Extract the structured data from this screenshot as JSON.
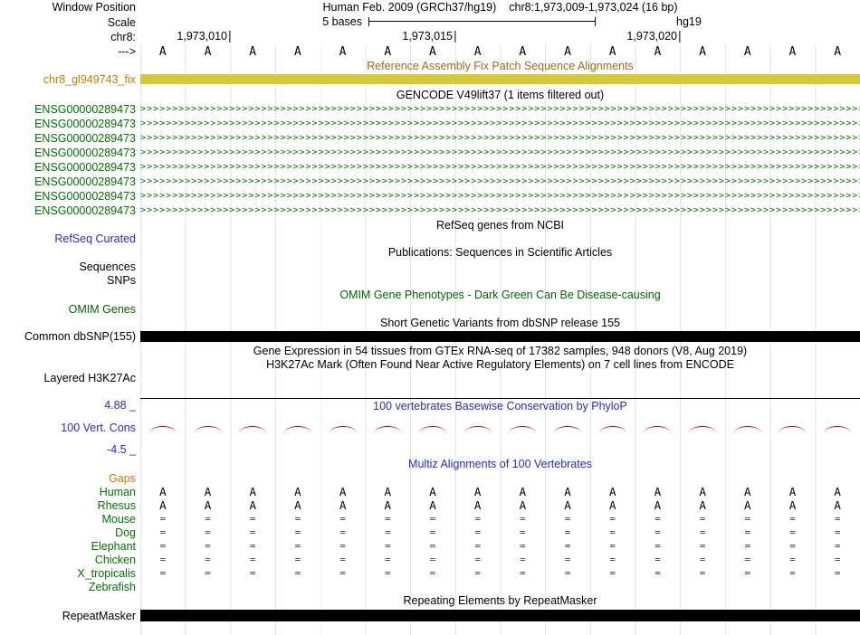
{
  "colors": {
    "grid": "#dde6f2",
    "green": "#007200",
    "blue": "#2929c8",
    "omim": "#006400",
    "orange": "#cc7a00",
    "gold": "#d6c837",
    "fixheader": "#a06a1e",
    "red": "#d40000",
    "black_bar": "#000000"
  },
  "header": {
    "window_position_label": "Window Position",
    "assembly_title": "Human Feb. 2009 (GRCh37/hg19)",
    "position": "chr8:1,973,009-1,973,024 (16 bp)",
    "scale_label": "Scale",
    "scale_value": "5 bases",
    "genome": "hg19",
    "chrom_label": "chr8:",
    "coord_ticks": [
      "1,973,010",
      "1,973,015",
      "1,973,020"
    ],
    "strand_arrow": "--->",
    "base_char": "A"
  },
  "tracks": {
    "fix_patch": {
      "header": "Reference Assembly Fix Patch Sequence Alignments",
      "label": "chr8_gl949743_fix"
    },
    "gencode": {
      "header": "GENCODE V49lift37 (1 items filtered out)",
      "gene_id": "ENSG00000289473",
      "arrow_char": ">"
    },
    "refseq": {
      "header": "RefSeq genes from NCBI",
      "label": "RefSeq Curated"
    },
    "publications": {
      "header": "Publications: Sequences in Scientific Articles",
      "sequences_label": "Sequences",
      "snps_label": "SNPs"
    },
    "omim": {
      "header": "OMIM Gene Phenotypes - Dark Green Can Be Disease-causing",
      "label": "OMIM Genes"
    },
    "dbsnp": {
      "header": "Short Genetic Variants from dbSNP release 155",
      "label": "Common dbSNP(155)"
    },
    "gtex": {
      "header": "Gene Expression in 54 tissues from GTEx RNA-seq of 17382 samples, 948 donors (V8, Aug 2019)"
    },
    "h3k27ac": {
      "header": "H3K27Ac Mark (Often Found Near Active Regulatory Elements) on 7 cell lines from ENCODE",
      "label": "Layered H3K27Ac"
    },
    "phylop": {
      "header": "100 vertebrates Basewise Conservation by PhyloP",
      "label": "100 Vert. Cons",
      "max_label": "4.88 _",
      "min_label": "-4.5 _"
    },
    "multiz": {
      "header": "Multiz Alignments of 100 Vertebrates",
      "gaps_label": "Gaps",
      "species": [
        {
          "name": "Human",
          "char": "A"
        },
        {
          "name": "Rhesus",
          "char": "A"
        },
        {
          "name": "Mouse",
          "char": "="
        },
        {
          "name": "Dog",
          "char": "="
        },
        {
          "name": "Elephant",
          "char": "="
        },
        {
          "name": "Chicken",
          "char": "="
        },
        {
          "name": "X_tropicalis",
          "char": "="
        },
        {
          "name": "Zebrafish",
          "char": ""
        }
      ]
    },
    "repeatmasker": {
      "header": "Repeating Elements by RepeatMasker",
      "label": "RepeatMasker"
    }
  }
}
